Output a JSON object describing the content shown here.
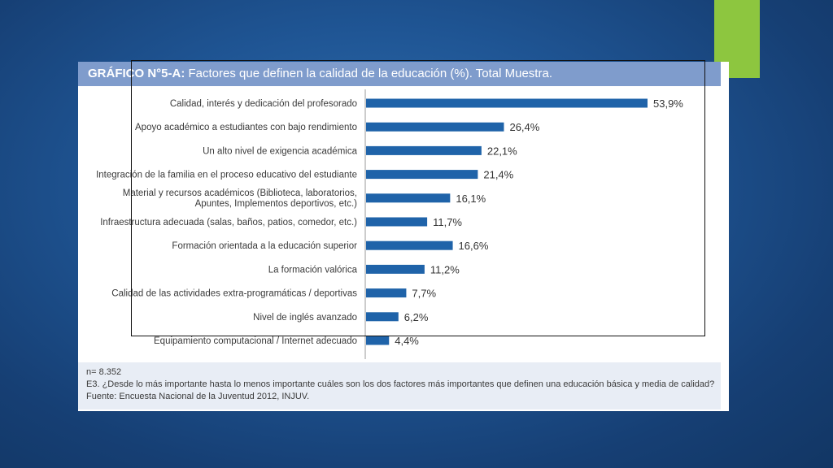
{
  "title": {
    "prefix": "GRÁFICO N°5-A:",
    "main": "Factores que definen la calidad de la educación (%). Total Muestra."
  },
  "colors": {
    "bar": "#1f63a9",
    "accent": "#8dc63f",
    "title_bar": "#7f9ccc"
  },
  "chart_data": {
    "type": "bar",
    "orientation": "horizontal",
    "title": "GRÁFICO N°5-A: Factores que definen la calidad de la educación (%). Total Muestra.",
    "categories": [
      [
        "Calidad, interés y dedicación del profesorado"
      ],
      [
        "Apoyo académico a estudiantes con bajo rendimiento"
      ],
      [
        "Un alto nivel de exigencia académica"
      ],
      [
        "Integración de la familia en el proceso educativo del estudiante"
      ],
      [
        "Material y recursos académicos (Biblioteca, laboratorios,",
        "Apuntes, Implementos deportivos, etc.)"
      ],
      [
        "Infraestructura adecuada (salas, baños, patios, comedor, etc.)"
      ],
      [
        "Formación orientada a la educación superior"
      ],
      [
        "La formación valórica"
      ],
      [
        "Calidad de las actividades extra-programáticas / deportivas"
      ],
      [
        "Nivel de inglés avanzado"
      ],
      [
        "Equipamiento computacional / Internet adecuado"
      ]
    ],
    "values": [
      53.9,
      26.4,
      22.1,
      21.4,
      16.1,
      11.7,
      16.6,
      11.2,
      7.7,
      6.2,
      4.4
    ],
    "value_labels": [
      "53,9%",
      "26,4%",
      "22,1%",
      "21,4%",
      "16,1%",
      "11,7%",
      "16,6%",
      "11,2%",
      "7,7%",
      "6,2%",
      "4,4%"
    ],
    "xlim": [
      0,
      60
    ],
    "grid": false,
    "legend": "none"
  },
  "footer": {
    "n": "n= 8.352",
    "question": "E3. ¿Desde lo más importante hasta lo menos importante cuáles son los dos factores más importantes que definen una educación básica y media de calidad?",
    "source": "Fuente: Encuesta Nacional de la Juventud 2012, INJUV."
  }
}
